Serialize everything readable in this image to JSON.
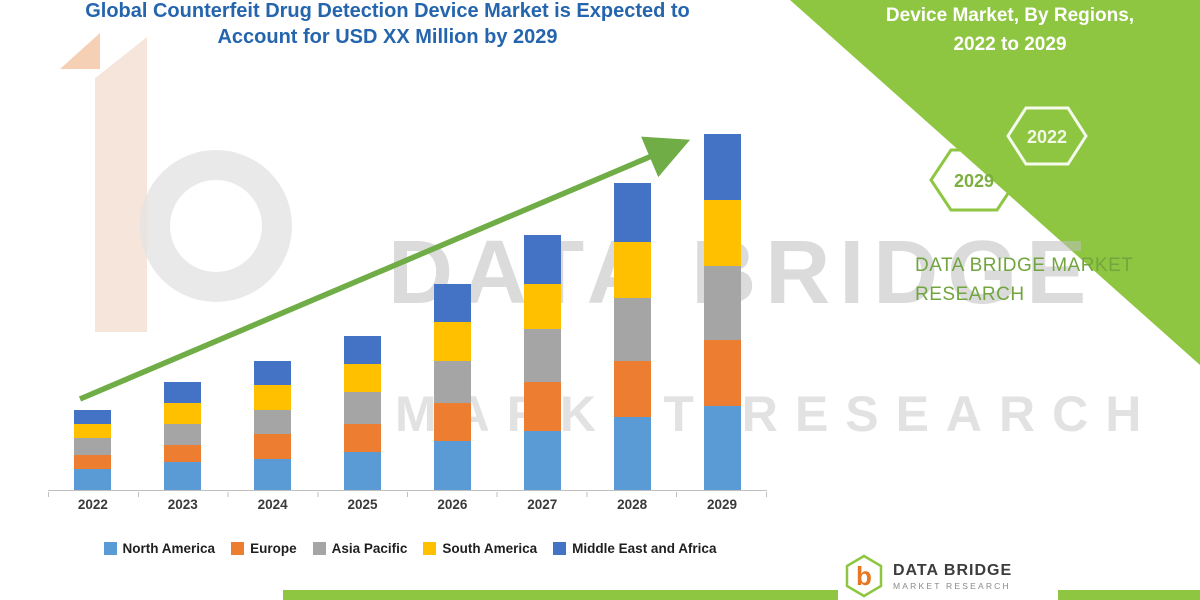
{
  "page": {
    "background": "#FFFFFF"
  },
  "title": {
    "line1": "Global Counterfeit Drug Detection Device Market is Expected to",
    "line2": "Account for USD XX Million by 2029",
    "color": "#2565AE"
  },
  "side_panel": {
    "band_color": "#8FC641",
    "heading_line1": "Device Market, By Regions,",
    "heading_line2": "2022 to 2029",
    "hexagon_left_label": "2029",
    "hexagon_right_label": "2022",
    "brand_line1": "DATA BRIDGE MARKET",
    "brand_line2": "RESEARCH",
    "brand_color": "#72A53F"
  },
  "watermark": {
    "line1": "DATA BRIDGE",
    "line2": "MARKET RESEARCH"
  },
  "footer_logo": {
    "icon": "data-bridge-hexagon-b-logo",
    "icon_letter": "b",
    "name": "DATA BRIDGE",
    "subtitle": "MARKET RESEARCH"
  },
  "chart_data": {
    "type": "bar",
    "stacked": true,
    "title": "Global Counterfeit Drug Detection Device Market is Expected to Account for USD XX Million by 2029",
    "categories": [
      "2022",
      "2023",
      "2024",
      "2025",
      "2026",
      "2027",
      "2028",
      "2029"
    ],
    "series": [
      {
        "name": "North America",
        "color": "#5B9BD5",
        "values": [
          6,
          8,
          9,
          11,
          14,
          17,
          21,
          24
        ]
      },
      {
        "name": "Europe",
        "color": "#ED7D31",
        "values": [
          4,
          5,
          7,
          8,
          11,
          14,
          16,
          19
        ]
      },
      {
        "name": "Asia Pacific",
        "color": "#A5A5A5",
        "values": [
          5,
          6,
          7,
          9,
          12,
          15,
          18,
          21
        ]
      },
      {
        "name": "South America",
        "color": "#FFC000",
        "values": [
          4,
          6,
          7,
          8,
          11,
          13,
          16,
          19
        ]
      },
      {
        "name": "Middle East and Africa",
        "color": "#4472C4",
        "values": [
          4,
          6,
          7,
          8,
          11,
          14,
          17,
          19
        ]
      }
    ],
    "xlabel": "",
    "ylabel": "",
    "y_axis_visible": false,
    "note": "No numeric y-axis shown in figure; values are relative estimates read from bar heights",
    "ylim": [
      0,
      113
    ],
    "legend_position": "bottom",
    "grid": false,
    "annotations": [
      "green upward trend arrow across bars"
    ],
    "trend_arrow_color": "#70AD47"
  }
}
